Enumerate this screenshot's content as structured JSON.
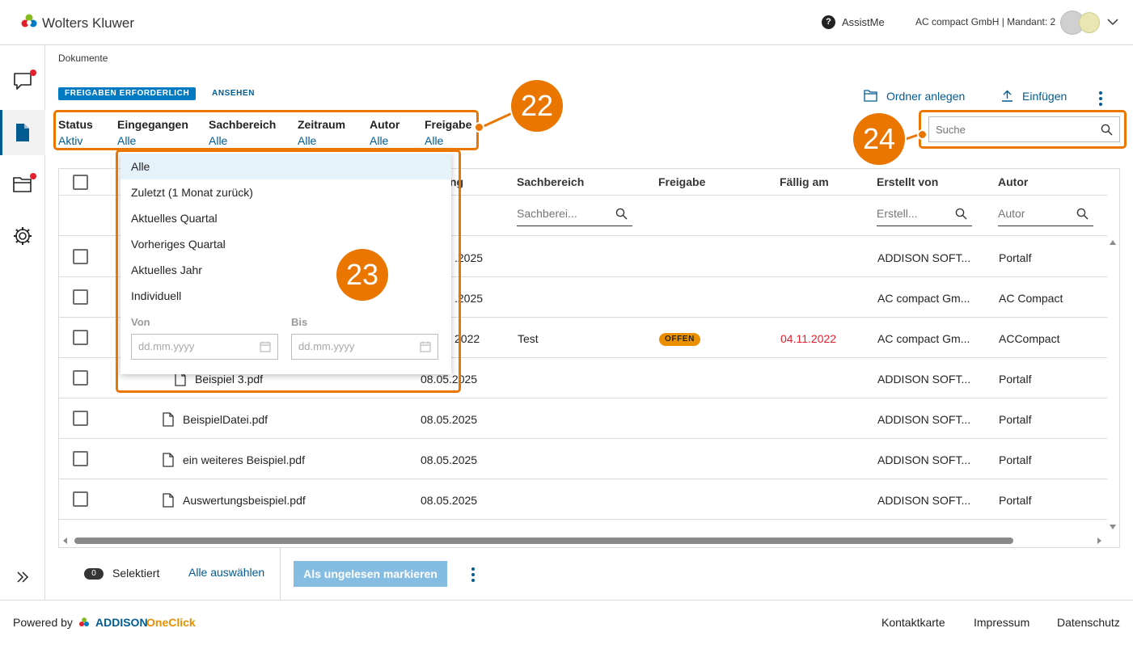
{
  "header": {
    "brand": "Wolters Kluwer",
    "assist_label": "AssistMe",
    "assist_icon": "?",
    "tenant": "AC compact GmbH | Mandant: 2"
  },
  "breadcrumb": "Dokumente",
  "tabs": {
    "active": "FREIGABEN ERFORDERLICH",
    "inactive": "ANSEHEN"
  },
  "actions": {
    "new_folder": "Ordner anlegen",
    "insert": "Einfügen"
  },
  "filters": [
    {
      "title": "Status",
      "value": "Aktiv"
    },
    {
      "title": "Eingegangen",
      "value": "Alle"
    },
    {
      "title": "Sachbereich",
      "value": "Alle"
    },
    {
      "title": "Zeitraum",
      "value": "Alle"
    },
    {
      "title": "Autor",
      "value": "Alle"
    },
    {
      "title": "Freigabe",
      "value": "Alle"
    }
  ],
  "search": {
    "placeholder": "Suche"
  },
  "table": {
    "header_fragment": "ng",
    "columns": {
      "sachbereich": "Sachbereich",
      "freigabe": "Freigabe",
      "faellig": "Fällig am",
      "erstellt": "Erstellt von",
      "autor": "Autor"
    },
    "column_filters": {
      "sachbereich": "Sachberei...",
      "erstellt": "Erstell...",
      "autor": "Autor"
    },
    "rows": [
      {
        "name": "",
        "date": ".2025",
        "sachbereich": "",
        "freigabe": "",
        "faellig": "",
        "erstellt": "ADDISON SOFT...",
        "autor": "Portalf"
      },
      {
        "name": "",
        "date": ".2025",
        "sachbereich": "",
        "freigabe": "",
        "faellig": "",
        "erstellt": "AC compact Gm...",
        "autor": "AC Compact"
      },
      {
        "name": "",
        "date": "2022",
        "sachbereich": "Test",
        "freigabe": "OFFEN",
        "faellig": "04.11.2022",
        "erstellt": "AC compact Gm...",
        "autor": "ACCompact"
      },
      {
        "name": "Beispiel 3.pdf",
        "date": "08.05.2025",
        "sachbereich": "",
        "freigabe": "",
        "faellig": "",
        "erstellt": "ADDISON SOFT...",
        "autor": "Portalf"
      },
      {
        "name": "BeispielDatei.pdf",
        "date": "08.05.2025",
        "sachbereich": "",
        "freigabe": "",
        "faellig": "",
        "erstellt": "ADDISON SOFT...",
        "autor": "Portalf"
      },
      {
        "name": "ein weiteres Beispiel.pdf",
        "date": "08.05.2025",
        "sachbereich": "",
        "freigabe": "",
        "faellig": "",
        "erstellt": "ADDISON SOFT...",
        "autor": "Portalf"
      },
      {
        "name": "Auswertungsbeispiel.pdf",
        "date": "08.05.2025",
        "sachbereich": "",
        "freigabe": "",
        "faellig": "",
        "erstellt": "ADDISON SOFT...",
        "autor": "Portalf"
      }
    ]
  },
  "dropdown": {
    "options": [
      "Alle",
      "Zuletzt (1 Monat zurück)",
      "Aktuelles Quartal",
      "Vorheriges Quartal",
      "Aktuelles Jahr",
      "Individuell"
    ],
    "selected": "Alle",
    "from_label": "Von",
    "to_label": "Bis",
    "date_placeholder": "dd.mm.yyyy"
  },
  "callouts": {
    "c22": "22",
    "c23": "23",
    "c24": "24"
  },
  "bottom": {
    "selected_count": "0",
    "selected_label": "Selektiert",
    "select_all": "Alle auswählen",
    "mark_unread": "Als ungelesen markieren"
  },
  "footer": {
    "powered_by": "Powered by",
    "brand_a": "ADDISON",
    "brand_b": "OneClick",
    "links": [
      "Kontaktkarte",
      "Impressum",
      "Datenschutz"
    ]
  },
  "colors": {
    "accent": "#005b92",
    "tab_active": "#007ac3",
    "callout": "#ea7600",
    "badge": "#ea8f00",
    "overdue": "#e5202e"
  }
}
